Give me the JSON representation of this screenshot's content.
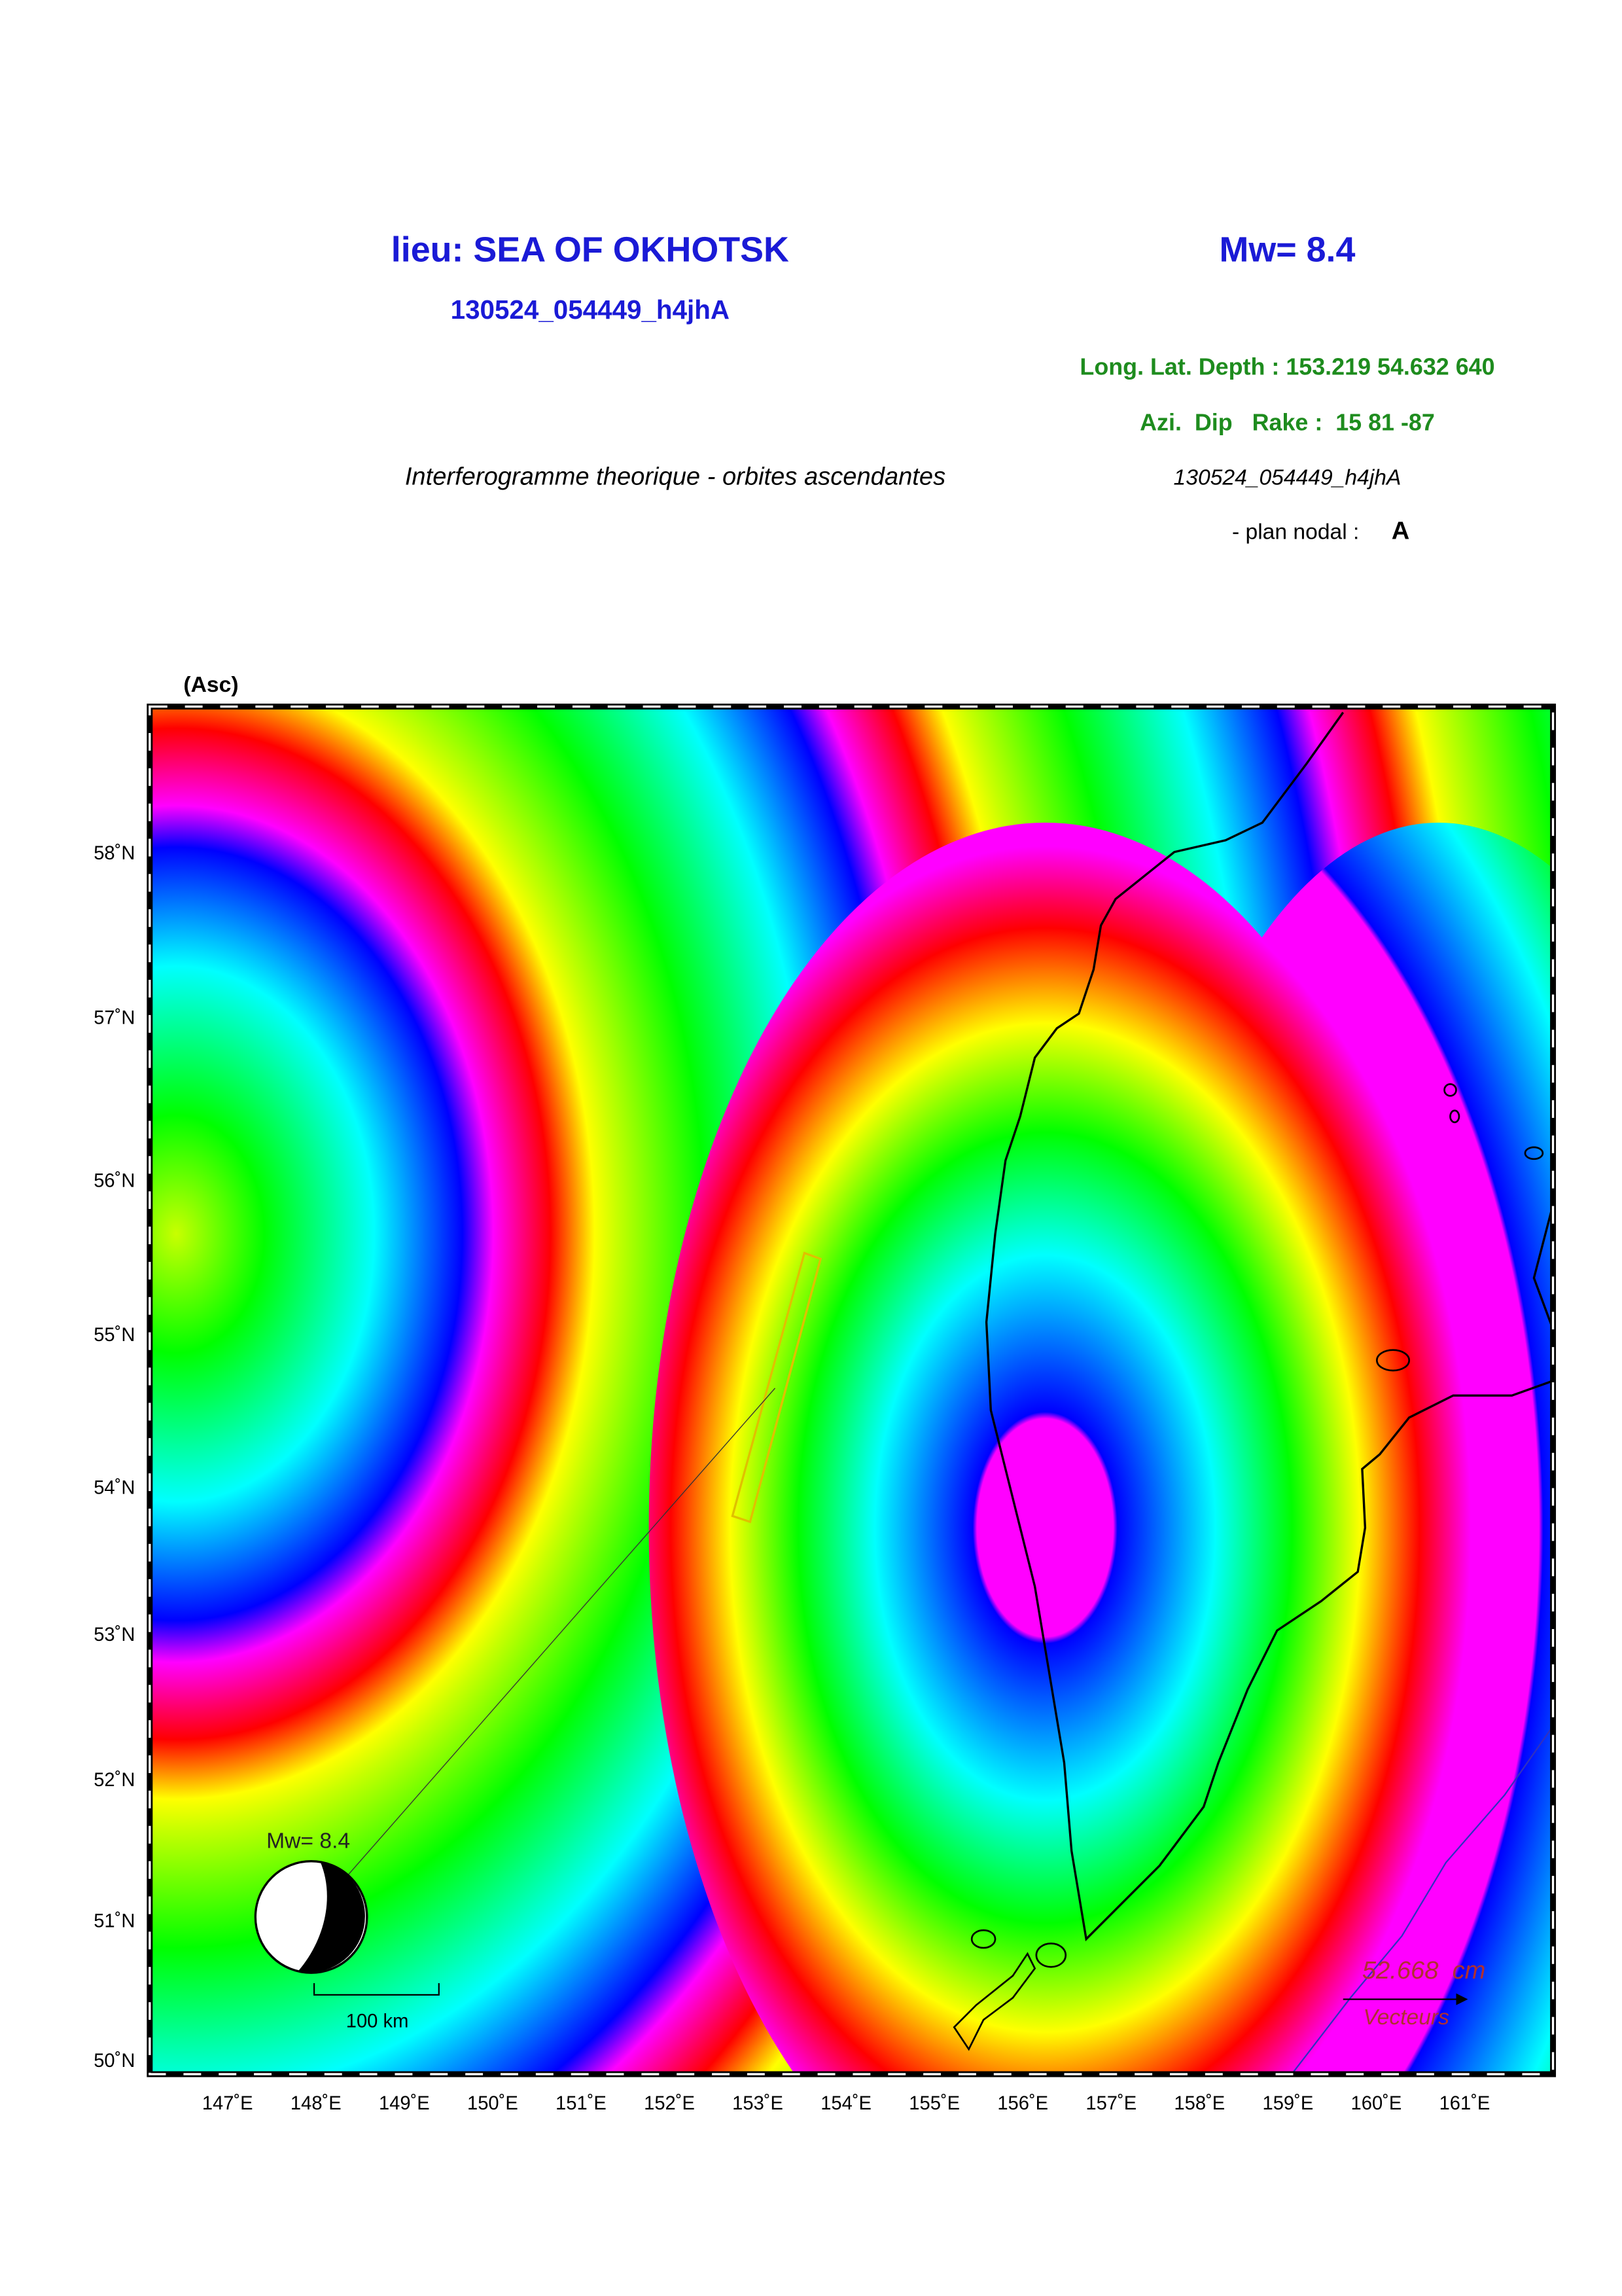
{
  "header": {
    "location": "lieu: SEA OF OKHOTSK",
    "magnitude": "Mw= 8.4",
    "event_id": "130524_054449_h4jhA",
    "position": "Long. Lat. Depth : 153.219 54.632 640",
    "mechanism": "Azi.  Dip   Rake :  15 81 -87",
    "subtitle": "Interferogramme theorique - orbites ascendantes",
    "event_id_2": "130524_054449_h4jhA",
    "nodal_plane_label": "- plan nodal :",
    "nodal_plane": "A"
  },
  "map": {
    "panel_label": "(Asc)",
    "lat_labels": [
      "58˚N",
      "57˚N",
      "56˚N",
      "55˚N",
      "54˚N",
      "53˚N",
      "52˚N",
      "51˚N",
      "50˚N"
    ],
    "lon_labels": [
      "147˚E",
      "148˚E",
      "149˚E",
      "150˚E",
      "151˚E",
      "152˚E",
      "153˚E",
      "154˚E",
      "155˚E",
      "156˚E",
      "157˚E",
      "158˚E",
      "159˚E",
      "160˚E",
      "161˚E"
    ],
    "beachball_label": "Mw= 8.4",
    "scale_label": "100 km",
    "vector_length": "52.668  cm",
    "vector_label": "Vecteurs"
  }
}
